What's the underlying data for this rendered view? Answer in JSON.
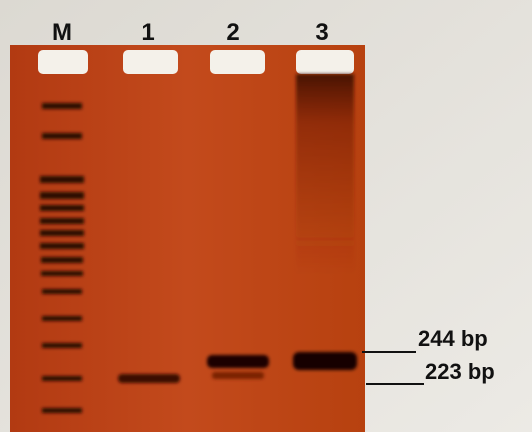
{
  "lanes": {
    "labels": [
      "M",
      "1",
      "2",
      "3"
    ]
  },
  "markers": [
    {
      "label": "244 bp"
    },
    {
      "label": "223 bp"
    }
  ]
}
